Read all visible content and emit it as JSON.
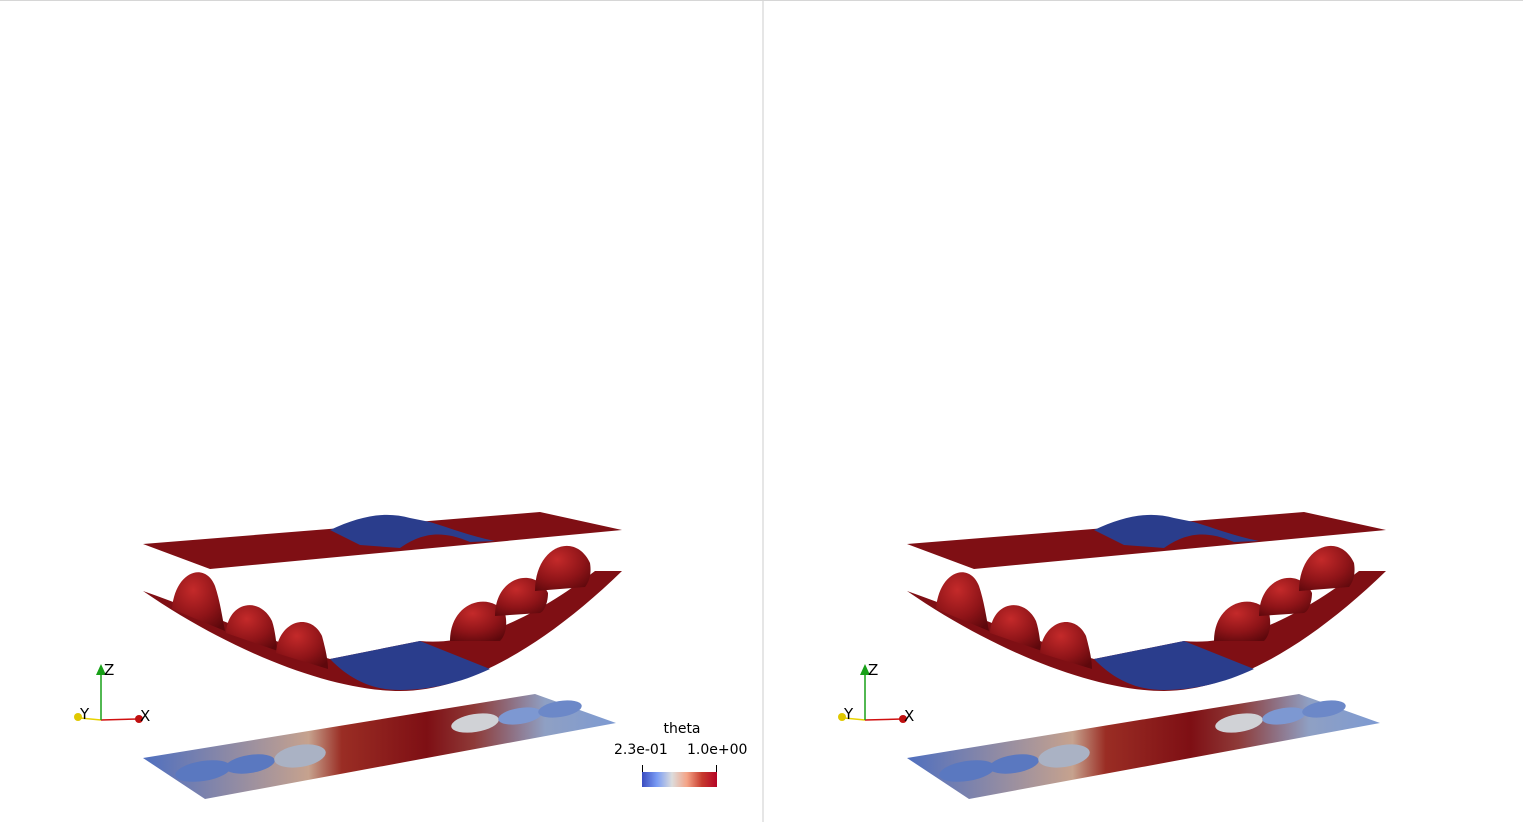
{
  "colors": {
    "surface_red": "#7f0f14",
    "surface_blue": "#2a3d8c",
    "plane_gradient_start": "#3c5cb4",
    "plane_gradient_mid": "#c0c4cc",
    "plane_gradient_end": "#7e0f14",
    "axis_x": "#d01010",
    "axis_y": "#e8d200",
    "axis_z": "#18a018"
  },
  "views": [
    {
      "name": "left",
      "axes": {
        "x": "X",
        "y": "Y",
        "z": "Z"
      },
      "colorbar": {
        "title": "theta",
        "min_label": "2.3e-01",
        "max_label": "1.0e+00"
      }
    },
    {
      "name": "right",
      "axes": {
        "x": "X",
        "y": "Y",
        "z": "Z"
      }
    }
  ]
}
